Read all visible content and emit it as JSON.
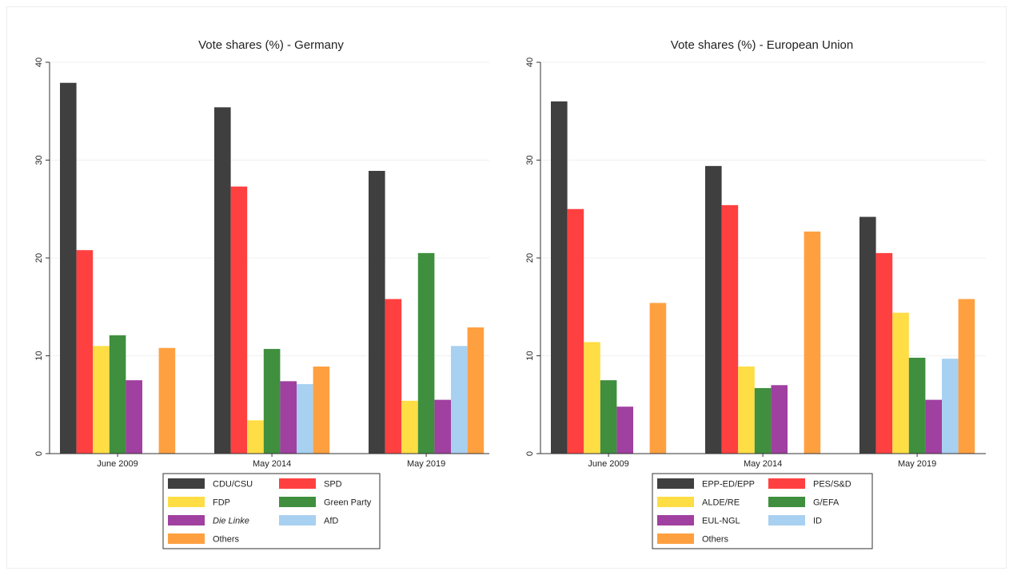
{
  "chart_data": [
    {
      "type": "bar",
      "title": "Vote shares (%) - Germany",
      "categories": [
        "June 2009",
        "May 2014",
        "May 2019"
      ],
      "ylim": [
        0,
        40
      ],
      "yticks": [
        "0",
        "10",
        "20",
        "30",
        "40"
      ],
      "grid": true,
      "legend_position": "bottom",
      "series": [
        {
          "name": "CDU/CSU",
          "color": "#3f3f3f",
          "values": [
            37.9,
            35.4,
            28.9
          ]
        },
        {
          "name": "SPD",
          "color": "#ff4040",
          "values": [
            20.8,
            27.3,
            15.8
          ]
        },
        {
          "name": "FDP",
          "color": "#ffdd44",
          "values": [
            11.0,
            3.4,
            5.4
          ]
        },
        {
          "name": "Green Party",
          "color": "#3f8f3f",
          "values": [
            12.1,
            10.7,
            20.5
          ]
        },
        {
          "name": "Die Linke",
          "color": "#a040a0",
          "italic": true,
          "values": [
            7.5,
            7.4,
            5.5
          ]
        },
        {
          "name": "AfD",
          "color": "#a8d0f0",
          "values": [
            null,
            7.1,
            11.0
          ]
        },
        {
          "name": "Others",
          "color": "#ffa040",
          "values": [
            10.8,
            8.9,
            12.9
          ]
        }
      ]
    },
    {
      "type": "bar",
      "title": "Vote shares (%) - European Union",
      "categories": [
        "June 2009",
        "May 2014",
        "May 2019"
      ],
      "ylim": [
        0,
        40
      ],
      "yticks": [
        "0",
        "10",
        "20",
        "30",
        "40"
      ],
      "grid": true,
      "legend_position": "bottom",
      "series": [
        {
          "name": "EPP-ED/EPP",
          "color": "#3f3f3f",
          "values": [
            36.0,
            29.4,
            24.2
          ]
        },
        {
          "name": "PES/S&D",
          "color": "#ff4040",
          "values": [
            25.0,
            25.4,
            20.5
          ]
        },
        {
          "name": "ALDE/RE",
          "color": "#ffdd44",
          "values": [
            11.4,
            8.9,
            14.4
          ]
        },
        {
          "name": "G/EFA",
          "color": "#3f8f3f",
          "values": [
            7.5,
            6.7,
            9.8
          ]
        },
        {
          "name": "EUL-NGL",
          "color": "#a040a0",
          "values": [
            4.8,
            7.0,
            5.5
          ]
        },
        {
          "name": "ID",
          "color": "#a8d0f0",
          "values": [
            null,
            null,
            9.7
          ]
        },
        {
          "name": "Others",
          "color": "#ffa040",
          "values": [
            15.4,
            22.7,
            15.8
          ]
        }
      ]
    }
  ]
}
